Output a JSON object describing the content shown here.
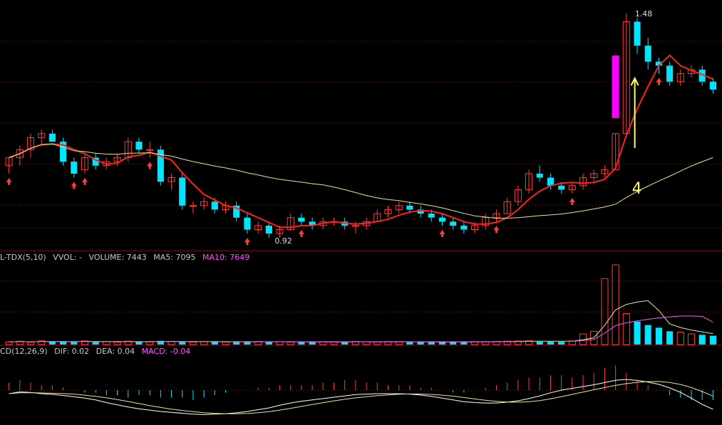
{
  "header_top": {
    "text": "",
    "color": "#c8c8c8"
  },
  "volume_header": {
    "label": "L-TDX(5,10)",
    "vvol": "VVOL: -",
    "volume": "VOLUME: 7443",
    "ma5": "MA5: 7095",
    "ma10": "MA10: 7649"
  },
  "macd_header": {
    "label": "CD(12,26,9)",
    "dif": "DIF: 0.02",
    "dea": "DEA: 0.04",
    "macd": "MACD: -0.04"
  },
  "annotations": {
    "high_label": "1.48",
    "low_label": "0.92",
    "number_label": "4"
  },
  "colors": {
    "up": "#ff3c3c",
    "down": "#00e5ff",
    "ma5": "#ff2020",
    "ma_long": "#e6e68c",
    "grid": "#7a0000",
    "highlight_bar": "#ff00ff",
    "arrow": "#ffff66",
    "ma10_text": "#ff55ff"
  },
  "chart_data": [
    {
      "type": "candlestick",
      "title": "",
      "high_marker": 1.48,
      "low_marker": 0.92,
      "ylim": [
        0.9,
        1.5
      ],
      "candles": [
        [
          1.1,
          1.12,
          1.08,
          1.12
        ],
        [
          1.12,
          1.15,
          1.1,
          1.14
        ],
        [
          1.14,
          1.18,
          1.12,
          1.17
        ],
        [
          1.17,
          1.19,
          1.15,
          1.18
        ],
        [
          1.18,
          1.19,
          1.16,
          1.16
        ],
        [
          1.16,
          1.17,
          1.1,
          1.11
        ],
        [
          1.11,
          1.12,
          1.07,
          1.08
        ],
        [
          1.09,
          1.13,
          1.08,
          1.12
        ],
        [
          1.12,
          1.13,
          1.09,
          1.1
        ],
        [
          1.1,
          1.12,
          1.09,
          1.11
        ],
        [
          1.11,
          1.13,
          1.1,
          1.12
        ],
        [
          1.12,
          1.17,
          1.11,
          1.16
        ],
        [
          1.16,
          1.17,
          1.13,
          1.14
        ],
        [
          1.14,
          1.16,
          1.12,
          1.14
        ],
        [
          1.14,
          1.15,
          1.05,
          1.06
        ],
        [
          1.06,
          1.08,
          1.04,
          1.07
        ],
        [
          1.07,
          1.08,
          0.99,
          1.0
        ],
        [
          1.0,
          1.01,
          0.98,
          1.0
        ],
        [
          1.0,
          1.02,
          0.99,
          1.01
        ],
        [
          1.01,
          1.02,
          0.98,
          0.99
        ],
        [
          0.99,
          1.01,
          0.98,
          1.0
        ],
        [
          1.0,
          1.01,
          0.96,
          0.97
        ],
        [
          0.97,
          0.98,
          0.93,
          0.94
        ],
        [
          0.94,
          0.96,
          0.93,
          0.95
        ],
        [
          0.95,
          0.96,
          0.92,
          0.93
        ],
        [
          0.93,
          0.95,
          0.92,
          0.94
        ],
        [
          0.94,
          0.98,
          0.94,
          0.97
        ],
        [
          0.97,
          0.98,
          0.95,
          0.96
        ],
        [
          0.96,
          0.97,
          0.94,
          0.95
        ],
        [
          0.95,
          0.97,
          0.94,
          0.96
        ],
        [
          0.96,
          0.97,
          0.95,
          0.96
        ],
        [
          0.96,
          0.97,
          0.94,
          0.95
        ],
        [
          0.95,
          0.96,
          0.93,
          0.95
        ],
        [
          0.95,
          0.97,
          0.94,
          0.96
        ],
        [
          0.96,
          0.99,
          0.96,
          0.98
        ],
        [
          0.98,
          1.0,
          0.97,
          0.99
        ],
        [
          0.99,
          1.01,
          0.98,
          1.0
        ],
        [
          1.0,
          1.01,
          0.98,
          0.99
        ],
        [
          0.99,
          1.0,
          0.97,
          0.98
        ],
        [
          0.98,
          0.99,
          0.96,
          0.97
        ],
        [
          0.97,
          0.98,
          0.95,
          0.96
        ],
        [
          0.96,
          0.97,
          0.94,
          0.95
        ],
        [
          0.95,
          0.96,
          0.93,
          0.94
        ],
        [
          0.94,
          0.96,
          0.93,
          0.95
        ],
        [
          0.95,
          0.98,
          0.94,
          0.97
        ],
        [
          0.97,
          0.99,
          0.96,
          0.98
        ],
        [
          0.98,
          1.02,
          0.98,
          1.01
        ],
        [
          1.01,
          1.05,
          1.0,
          1.04
        ],
        [
          1.04,
          1.09,
          1.03,
          1.08
        ],
        [
          1.08,
          1.1,
          1.06,
          1.07
        ],
        [
          1.07,
          1.08,
          1.04,
          1.05
        ],
        [
          1.05,
          1.06,
          1.03,
          1.04
        ],
        [
          1.04,
          1.06,
          1.03,
          1.05
        ],
        [
          1.05,
          1.08,
          1.04,
          1.07
        ],
        [
          1.07,
          1.09,
          1.06,
          1.08
        ],
        [
          1.08,
          1.1,
          1.07,
          1.09
        ],
        [
          1.09,
          1.18,
          1.09,
          1.18
        ],
        [
          1.18,
          1.48,
          1.17,
          1.46
        ],
        [
          1.46,
          1.47,
          1.38,
          1.4
        ],
        [
          1.4,
          1.42,
          1.34,
          1.36
        ],
        [
          1.36,
          1.37,
          1.33,
          1.35
        ],
        [
          1.35,
          1.36,
          1.3,
          1.31
        ],
        [
          1.31,
          1.34,
          1.3,
          1.33
        ],
        [
          1.33,
          1.35,
          1.32,
          1.34
        ],
        [
          1.34,
          1.35,
          1.3,
          1.31
        ],
        [
          1.31,
          1.32,
          1.28,
          1.29
        ]
      ]
    },
    {
      "type": "bar",
      "title": "VOLUME",
      "values": [
        300,
        380,
        260,
        420,
        330,
        350,
        290,
        410,
        300,
        360,
        280,
        390,
        330,
        300,
        420,
        360,
        310,
        290,
        330,
        350,
        300,
        320,
        280,
        360,
        300,
        340,
        290,
        310,
        300,
        330,
        310,
        290,
        360,
        320,
        300,
        340,
        310,
        330,
        290,
        300,
        310,
        320,
        290,
        330,
        340,
        360,
        380,
        400,
        420,
        380,
        350,
        360,
        400,
        1200,
        1500,
        7443,
        9000,
        3500,
        2600,
        2200,
        1900,
        1500,
        1400,
        1200,
        1100,
        1000
      ],
      "ma5": 7095,
      "ma10": 7649
    },
    {
      "type": "bar",
      "title": "MACD",
      "dif": 0.02,
      "dea": 0.04,
      "macd": -0.04,
      "values": [
        0.03,
        0.04,
        0.03,
        0.02,
        0.02,
        0.01,
        0.0,
        -0.01,
        -0.01,
        -0.02,
        -0.02,
        -0.03,
        -0.02,
        -0.02,
        -0.03,
        -0.03,
        -0.03,
        -0.04,
        -0.03,
        -0.02,
        -0.01,
        0.0,
        0.0,
        0.01,
        0.01,
        0.02,
        0.02,
        0.02,
        0.02,
        0.03,
        0.03,
        0.04,
        0.04,
        0.03,
        0.03,
        0.02,
        0.02,
        0.02,
        0.01,
        0.01,
        0.0,
        -0.01,
        -0.01,
        0.0,
        0.01,
        0.02,
        0.03,
        0.04,
        0.05,
        0.05,
        0.06,
        0.06,
        0.05,
        0.06,
        0.07,
        0.09,
        0.1,
        0.07,
        0.04,
        0.02,
        0.0,
        -0.02,
        -0.03,
        -0.04,
        -0.04,
        -0.04
      ]
    }
  ]
}
